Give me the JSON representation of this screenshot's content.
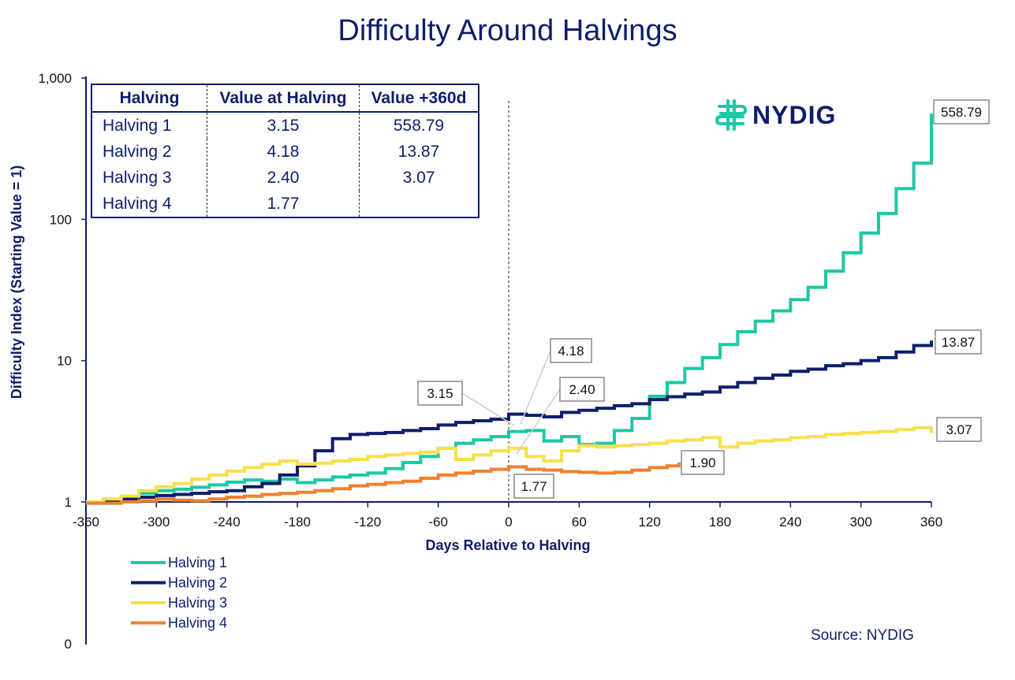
{
  "title": "Difficulty Around Halvings",
  "logo": {
    "text": "NYDIG",
    "icon": "nydig-logo-icon",
    "color": "#1dc8a4"
  },
  "source": "Source: NYDIG",
  "table": {
    "headers": [
      "Halving",
      "Value at Halving",
      "Value +360d"
    ],
    "rows": [
      [
        "Halving 1",
        "3.15",
        "558.79"
      ],
      [
        "Halving 2",
        "4.18",
        "13.87"
      ],
      [
        "Halving 3",
        "2.40",
        "3.07"
      ],
      [
        "Halving 4",
        "1.77",
        ""
      ]
    ]
  },
  "chart_data": {
    "type": "line",
    "title": "Difficulty Around Halvings",
    "xlabel": "Days Relative to Halving",
    "ylabel": "Difficulty Index (Starting Value = 1)",
    "xlim": [
      -360,
      360
    ],
    "ylim": [
      1,
      1000
    ],
    "yscale": "log",
    "xticks": [
      -360,
      -300,
      -240,
      -180,
      -120,
      -60,
      0,
      60,
      120,
      180,
      240,
      300,
      360
    ],
    "yticks": [
      {
        "v": 1,
        "label": "1"
      },
      {
        "v": 10,
        "label": "10"
      },
      {
        "v": 100,
        "label": "100"
      },
      {
        "v": 1000,
        "label": "1,000"
      }
    ],
    "extra_ytick_label": "0",
    "halving_line_x": 0,
    "legend_position": "bottom-left",
    "grid": false,
    "series": [
      {
        "name": "Halving 1",
        "color": "#1dc8a4",
        "points": [
          [
            -360,
            1.0
          ],
          [
            -345,
            1.03
          ],
          [
            -330,
            1.09
          ],
          [
            -315,
            1.15
          ],
          [
            -300,
            1.2
          ],
          [
            -285,
            1.23
          ],
          [
            -270,
            1.27
          ],
          [
            -255,
            1.32
          ],
          [
            -240,
            1.38
          ],
          [
            -225,
            1.43
          ],
          [
            -210,
            1.4
          ],
          [
            -195,
            1.45
          ],
          [
            -180,
            1.37
          ],
          [
            -165,
            1.43
          ],
          [
            -150,
            1.5
          ],
          [
            -135,
            1.55
          ],
          [
            -120,
            1.6
          ],
          [
            -105,
            1.72
          ],
          [
            -90,
            1.9
          ],
          [
            -75,
            2.1
          ],
          [
            -60,
            2.4
          ],
          [
            -45,
            2.6
          ],
          [
            -30,
            2.75
          ],
          [
            -15,
            2.9
          ],
          [
            0,
            3.15
          ],
          [
            15,
            3.2
          ],
          [
            30,
            2.7
          ],
          [
            45,
            2.9
          ],
          [
            60,
            2.55
          ],
          [
            75,
            2.6
          ],
          [
            90,
            3.2
          ],
          [
            105,
            3.9
          ],
          [
            120,
            5.6
          ],
          [
            135,
            7.0
          ],
          [
            150,
            8.8
          ],
          [
            165,
            10.5
          ],
          [
            180,
            13.0
          ],
          [
            195,
            16.0
          ],
          [
            210,
            19.0
          ],
          [
            225,
            22.5
          ],
          [
            240,
            27.0
          ],
          [
            255,
            33.0
          ],
          [
            270,
            43.0
          ],
          [
            285,
            58.0
          ],
          [
            300,
            80.0
          ],
          [
            315,
            110.0
          ],
          [
            330,
            165.0
          ],
          [
            345,
            250.0
          ],
          [
            360,
            558.79
          ]
        ]
      },
      {
        "name": "Halving 2",
        "color": "#0d1e6b",
        "points": [
          [
            -360,
            1.0
          ],
          [
            -345,
            1.02
          ],
          [
            -330,
            1.05
          ],
          [
            -315,
            1.08
          ],
          [
            -300,
            1.11
          ],
          [
            -285,
            1.13
          ],
          [
            -270,
            1.15
          ],
          [
            -255,
            1.18
          ],
          [
            -240,
            1.2
          ],
          [
            -225,
            1.28
          ],
          [
            -210,
            1.35
          ],
          [
            -195,
            1.55
          ],
          [
            -180,
            1.8
          ],
          [
            -165,
            2.3
          ],
          [
            -150,
            2.8
          ],
          [
            -135,
            3.0
          ],
          [
            -120,
            3.05
          ],
          [
            -105,
            3.1
          ],
          [
            -90,
            3.2
          ],
          [
            -75,
            3.3
          ],
          [
            -60,
            3.5
          ],
          [
            -45,
            3.65
          ],
          [
            -30,
            3.75
          ],
          [
            -15,
            3.85
          ],
          [
            0,
            4.18
          ],
          [
            15,
            4.1
          ],
          [
            30,
            4.0
          ],
          [
            45,
            4.3
          ],
          [
            60,
            4.45
          ],
          [
            75,
            4.6
          ],
          [
            90,
            4.8
          ],
          [
            105,
            4.95
          ],
          [
            120,
            5.3
          ],
          [
            135,
            5.55
          ],
          [
            150,
            5.8
          ],
          [
            165,
            6.0
          ],
          [
            180,
            6.5
          ],
          [
            195,
            7.0
          ],
          [
            210,
            7.5
          ],
          [
            225,
            7.9
          ],
          [
            240,
            8.4
          ],
          [
            255,
            8.7
          ],
          [
            270,
            9.2
          ],
          [
            285,
            9.5
          ],
          [
            300,
            10.0
          ],
          [
            315,
            10.5
          ],
          [
            330,
            11.5
          ],
          [
            345,
            12.8
          ],
          [
            360,
            13.87
          ]
        ]
      },
      {
        "name": "Halving 3",
        "color": "#f7e04b",
        "points": [
          [
            -360,
            1.0
          ],
          [
            -345,
            1.05
          ],
          [
            -330,
            1.1
          ],
          [
            -315,
            1.2
          ],
          [
            -300,
            1.28
          ],
          [
            -285,
            1.35
          ],
          [
            -270,
            1.45
          ],
          [
            -255,
            1.55
          ],
          [
            -240,
            1.65
          ],
          [
            -225,
            1.75
          ],
          [
            -210,
            1.85
          ],
          [
            -195,
            1.95
          ],
          [
            -180,
            1.85
          ],
          [
            -165,
            1.88
          ],
          [
            -150,
            1.95
          ],
          [
            -135,
            2.0
          ],
          [
            -120,
            2.1
          ],
          [
            -105,
            2.15
          ],
          [
            -90,
            2.2
          ],
          [
            -75,
            2.25
          ],
          [
            -60,
            2.4
          ],
          [
            -45,
            2.0
          ],
          [
            -30,
            2.15
          ],
          [
            -15,
            2.3
          ],
          [
            0,
            2.4
          ],
          [
            15,
            2.1
          ],
          [
            30,
            1.95
          ],
          [
            45,
            2.3
          ],
          [
            60,
            2.5
          ],
          [
            75,
            2.45
          ],
          [
            90,
            2.5
          ],
          [
            105,
            2.55
          ],
          [
            120,
            2.6
          ],
          [
            135,
            2.7
          ],
          [
            150,
            2.75
          ],
          [
            165,
            2.85
          ],
          [
            180,
            2.45
          ],
          [
            195,
            2.6
          ],
          [
            210,
            2.7
          ],
          [
            225,
            2.75
          ],
          [
            240,
            2.85
          ],
          [
            255,
            2.9
          ],
          [
            270,
            3.0
          ],
          [
            285,
            3.05
          ],
          [
            300,
            3.1
          ],
          [
            315,
            3.15
          ],
          [
            330,
            3.25
          ],
          [
            345,
            3.35
          ],
          [
            360,
            3.07
          ]
        ]
      },
      {
        "name": "Halving 4",
        "color": "#f08030",
        "points": [
          [
            -360,
            0.98
          ],
          [
            -345,
            0.98
          ],
          [
            -330,
            1.0
          ],
          [
            -315,
            1.02
          ],
          [
            -300,
            1.05
          ],
          [
            -285,
            1.03
          ],
          [
            -270,
            1.02
          ],
          [
            -255,
            1.05
          ],
          [
            -240,
            1.08
          ],
          [
            -225,
            1.1
          ],
          [
            -210,
            1.13
          ],
          [
            -195,
            1.15
          ],
          [
            -180,
            1.17
          ],
          [
            -165,
            1.2
          ],
          [
            -150,
            1.24
          ],
          [
            -135,
            1.3
          ],
          [
            -120,
            1.33
          ],
          [
            -105,
            1.37
          ],
          [
            -90,
            1.4
          ],
          [
            -75,
            1.47
          ],
          [
            -60,
            1.55
          ],
          [
            -45,
            1.6
          ],
          [
            -30,
            1.65
          ],
          [
            -15,
            1.7
          ],
          [
            0,
            1.77
          ],
          [
            15,
            1.7
          ],
          [
            30,
            1.68
          ],
          [
            45,
            1.64
          ],
          [
            60,
            1.62
          ],
          [
            75,
            1.6
          ],
          [
            90,
            1.62
          ],
          [
            105,
            1.68
          ],
          [
            120,
            1.75
          ],
          [
            135,
            1.8
          ],
          [
            145,
            1.9
          ]
        ]
      }
    ],
    "callouts": [
      {
        "label": "3.15",
        "x": 0,
        "y": 3.15,
        "color": "#cccccc"
      },
      {
        "label": "4.18",
        "x": 0,
        "y": 4.18,
        "color": "#cccccc"
      },
      {
        "label": "2.40",
        "x": 0,
        "y": 2.4,
        "color": "#cccccc"
      },
      {
        "label": "1.77",
        "x": 0,
        "y": 1.77,
        "color": "#cccccc"
      },
      {
        "label": "558.79",
        "x": 360,
        "y": 558.79,
        "color": "#cccccc"
      },
      {
        "label": "13.87",
        "x": 360,
        "y": 13.87,
        "color": "#cccccc"
      },
      {
        "label": "3.07",
        "x": 360,
        "y": 3.07,
        "color": "#cccccc"
      },
      {
        "label": "1.90",
        "x": 145,
        "y": 1.9,
        "color": "#cccccc"
      }
    ]
  }
}
